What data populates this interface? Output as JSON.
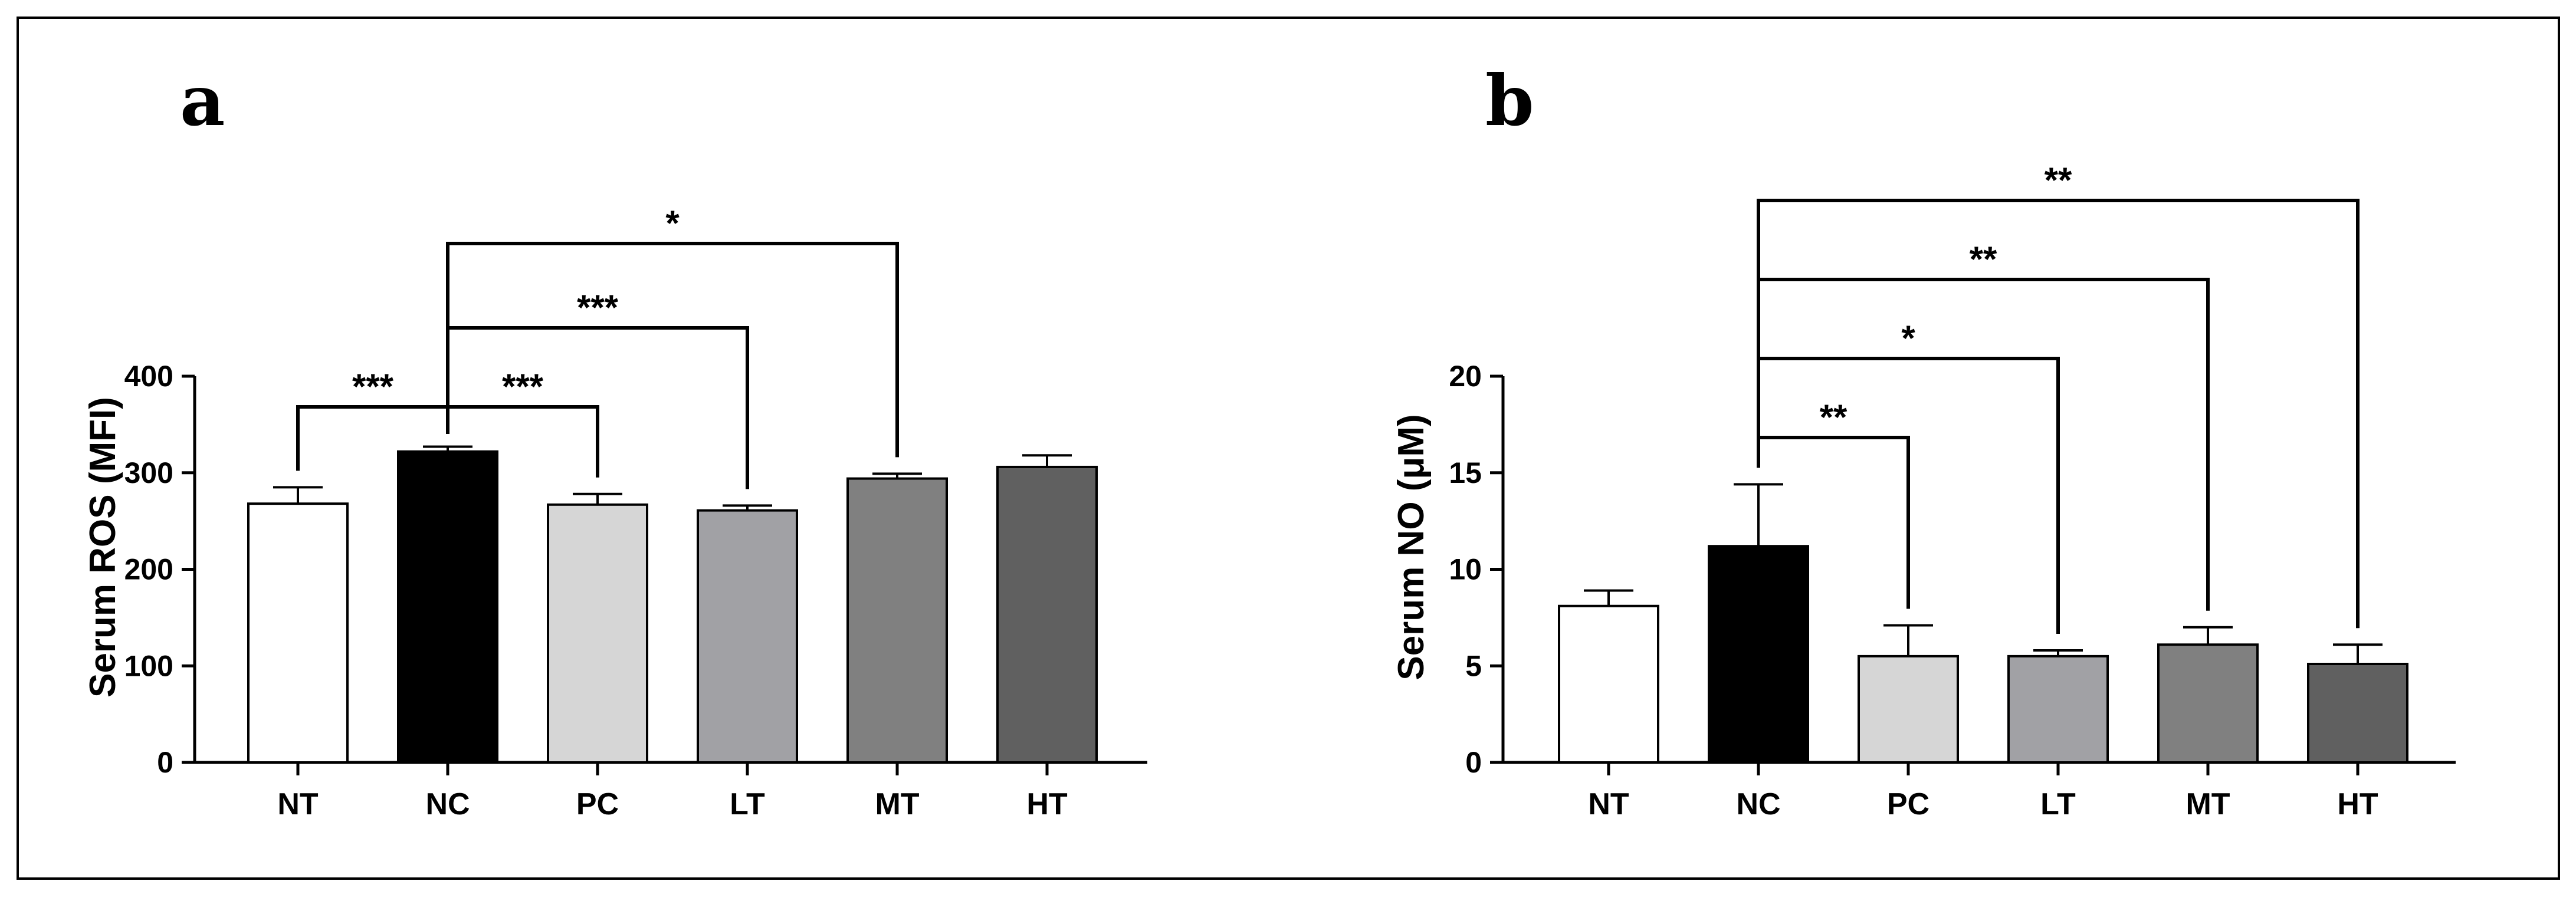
{
  "chart_data": [
    {
      "panel": "a",
      "type": "bar",
      "ylabel": "Serum ROS (MFI)",
      "xlabel": "",
      "ylim": [
        0,
        400
      ],
      "yticks": [
        0,
        100,
        200,
        300,
        400
      ],
      "categories": [
        "NT",
        "NC",
        "PC",
        "LT",
        "MT",
        "HT"
      ],
      "values": [
        268,
        322,
        267,
        261,
        294,
        306
      ],
      "errors": [
        17,
        5,
        11,
        5,
        5,
        12
      ],
      "colors": [
        "#ffffff",
        "#000000",
        "#d6d6d6",
        "#a1a1a5",
        "#808080",
        "#606060"
      ],
      "comparisons": [
        {
          "from": "NT",
          "to": "NC",
          "label": "***"
        },
        {
          "from": "NC",
          "to": "PC",
          "label": "***"
        },
        {
          "from": "NC",
          "to": "LT",
          "label": "***"
        },
        {
          "from": "NC",
          "to": "MT",
          "label": "*"
        }
      ]
    },
    {
      "panel": "b",
      "type": "bar",
      "ylabel": "Serum NO (μM)",
      "xlabel": "",
      "ylim": [
        0,
        20
      ],
      "yticks": [
        0,
        5,
        10,
        15,
        20
      ],
      "categories": [
        "NT",
        "NC",
        "PC",
        "LT",
        "MT",
        "HT"
      ],
      "values": [
        8.1,
        11.2,
        5.5,
        5.5,
        6.1,
        5.1
      ],
      "errors": [
        0.8,
        3.2,
        1.6,
        0.3,
        0.9,
        1.0
      ],
      "colors": [
        "#ffffff",
        "#000000",
        "#d6d6d6",
        "#a1a1a5",
        "#808080",
        "#606060"
      ],
      "comparisons": [
        {
          "from": "NC",
          "to": "PC",
          "label": "**"
        },
        {
          "from": "NC",
          "to": "LT",
          "label": "*"
        },
        {
          "from": "NC",
          "to": "MT",
          "label": "**"
        },
        {
          "from": "NC",
          "to": "HT",
          "label": "**"
        }
      ]
    }
  ]
}
